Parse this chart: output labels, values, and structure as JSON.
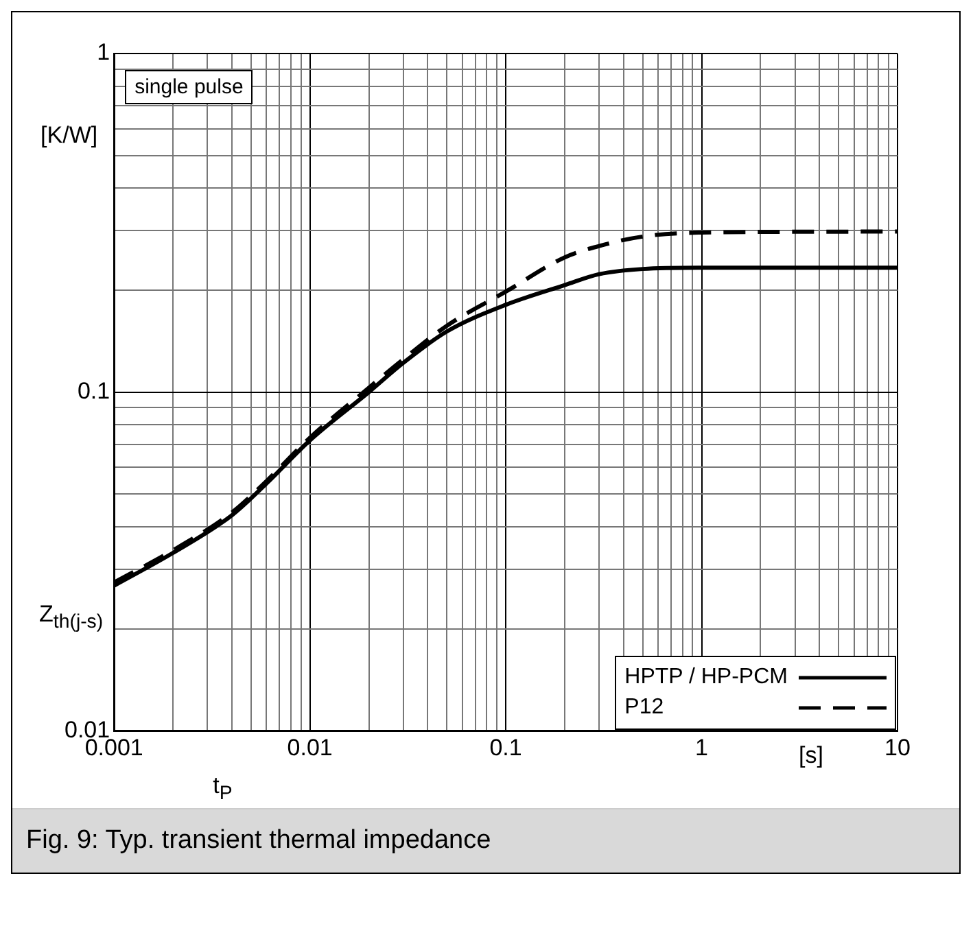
{
  "chart_data": {
    "type": "line",
    "xlabel": "t$_{P}$",
    "ylabel": "Z$_{th(j-s)}$",
    "annotations": [
      "single pulse",
      "[K/W]",
      "[s]",
      "Fig. 9: Typ. transient thermal impedance"
    ],
    "log": "xy",
    "grid": true,
    "legend": "bottom right",
    "marker": "none",
    "xlim": [
      0.001,
      10
    ],
    "ylim": [
      0.01,
      1
    ],
    "xticks": [
      0.001,
      {
        "value": 0.002,
        "label": null
      },
      {
        "value": 0.003,
        "label": null
      },
      {
        "value": 0.004,
        "label": null
      },
      {
        "value": 0.005,
        "label": null
      },
      {
        "value": 0.006,
        "label": null
      },
      {
        "value": 0.007,
        "label": null
      },
      {
        "value": 0.008,
        "label": null
      },
      {
        "value": 0.009,
        "label": null
      },
      0.01,
      {
        "value": 0.02,
        "label": null
      },
      {
        "value": 0.03,
        "label": null
      },
      {
        "value": 0.04,
        "label": null
      },
      {
        "value": 0.05,
        "label": null
      },
      {
        "value": 0.06,
        "label": null
      },
      {
        "value": 0.07,
        "label": null
      },
      {
        "value": 0.08,
        "label": null
      },
      {
        "value": 0.09,
        "label": null
      },
      0.1,
      {
        "value": 0.2,
        "label": null
      },
      {
        "value": 0.3,
        "label": null
      },
      {
        "value": 0.4,
        "label": null
      },
      {
        "value": 0.5,
        "label": null
      },
      {
        "value": 0.6,
        "label": null
      },
      {
        "value": 0.7,
        "label": null
      },
      {
        "value": 0.8,
        "label": null
      },
      {
        "value": 0.9,
        "label": null
      },
      1,
      {
        "value": 2,
        "label": null
      },
      {
        "value": 3,
        "label": null
      },
      {
        "value": 4,
        "label": null
      },
      {
        "value": 5,
        "label": null
      },
      {
        "value": 6,
        "label": null
      },
      {
        "value": 7,
        "label": null
      },
      {
        "value": 8,
        "label": null
      },
      {
        "value": 9,
        "label": null
      },
      10
    ],
    "yticks": [
      0.01,
      {
        "value": 0.02,
        "label": null
      },
      {
        "value": 0.03,
        "label": null
      },
      {
        "value": 0.04,
        "label": null
      },
      {
        "value": 0.05,
        "label": null
      },
      {
        "value": 0.06,
        "label": null
      },
      {
        "value": 0.07,
        "label": null
      },
      {
        "value": 0.08,
        "label": null
      },
      {
        "value": 0.09,
        "label": null
      },
      0.1,
      {
        "value": 0.2,
        "label": null
      },
      {
        "value": 0.3,
        "label": null
      },
      {
        "value": 0.4,
        "label": null
      },
      {
        "value": 0.5,
        "label": null
      },
      {
        "value": 0.6,
        "label": null
      },
      {
        "value": 0.7,
        "label": null
      },
      {
        "value": 0.8,
        "label": null
      },
      {
        "value": 0.9,
        "label": null
      },
      1
    ],
    "x": [
      0.001,
      0.002,
      0.004,
      0.006,
      0.01,
      0.02,
      0.03,
      0.05,
      0.1,
      0.2,
      0.3,
      0.5,
      1,
      10
    ],
    "series": [
      {
        "name": "HPTP / HP-PCM",
        "color": "#000000",
        "line_style": "solid",
        "values": [
          0.0268,
          0.0335,
          0.0433,
          0.0537,
          0.072,
          0.1,
          0.122,
          0.151,
          0.181,
          0.207,
          0.223,
          0.231,
          0.233,
          0.233
        ]
      },
      {
        "name": "P12",
        "color": "#000000",
        "line_style": "dashed",
        "values": [
          0.0274,
          0.0341,
          0.0441,
          0.0546,
          0.0733,
          0.103,
          0.125,
          0.157,
          0.198,
          0.25,
          0.27,
          0.288,
          0.296,
          0.298
        ]
      }
    ]
  }
}
